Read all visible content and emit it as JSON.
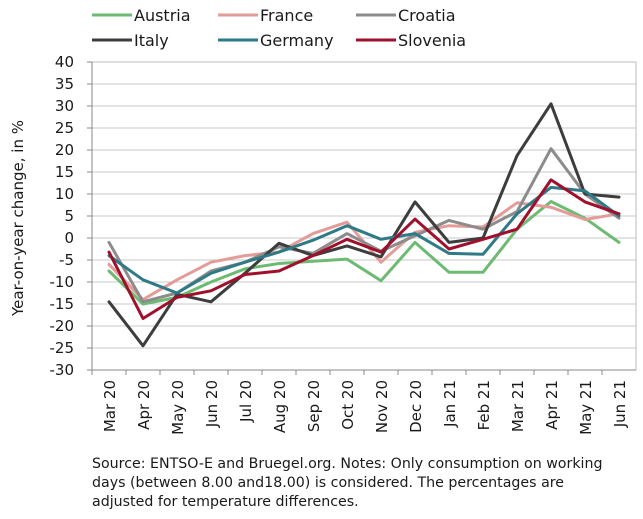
{
  "chart_data": {
    "type": "line",
    "ylabel": "Year-on-year change, in %",
    "xlabel": "",
    "ylim": [
      -30,
      40
    ],
    "yticks": [
      40,
      35,
      30,
      25,
      20,
      15,
      10,
      5,
      0,
      -5,
      -10,
      -15,
      -20,
      -25,
      -30
    ],
    "grid": true,
    "legend_position": "top",
    "categories": [
      "Mar 20",
      "Apr 20",
      "May 20",
      "Jun 20",
      "Jul 20",
      "Aug 20",
      "Sep 20",
      "Oct 20",
      "Nov 20",
      "Dec 20",
      "Jan 21",
      "Feb 21",
      "Mar 21",
      "Apr 21",
      "May 21",
      "Jun 21"
    ],
    "series": [
      {
        "name": "Austria",
        "color": "#6dbb72",
        "values": [
          -7.5,
          -15,
          -13.5,
          -10,
          -7,
          -5.8,
          -5.3,
          -4.8,
          -9.7,
          -1,
          -7.8,
          -7.8,
          2,
          8.3,
          4.5,
          -1
        ]
      },
      {
        "name": "France",
        "color": "#e39c97",
        "values": [
          -6,
          -14,
          -9.5,
          -5.5,
          -4,
          -3.2,
          1,
          3.6,
          -5.5,
          1.3,
          2.8,
          2.5,
          8,
          7,
          4.2,
          5.5
        ]
      },
      {
        "name": "Croatia",
        "color": "#8c8c8c",
        "values": [
          -1,
          -14.5,
          -12.5,
          -7.5,
          -5.5,
          -2,
          -3.5,
          1,
          -3,
          0.5,
          4,
          2,
          6,
          20.3,
          10,
          4.5
        ]
      },
      {
        "name": "Italy",
        "color": "#3d3d3d",
        "values": [
          -14.5,
          -24.5,
          -12.8,
          -14.5,
          -8,
          -1.2,
          -4,
          -1.8,
          -4.3,
          8.2,
          -1,
          0,
          18.7,
          30.5,
          10,
          9.3
        ]
      },
      {
        "name": "Germany",
        "color": "#2e7a86",
        "values": [
          -4,
          -9.5,
          -12.5,
          -8,
          -5.5,
          -3.2,
          -0.5,
          2.8,
          -0.3,
          1,
          -3.5,
          -3.7,
          5.5,
          11.5,
          10.7,
          5
        ]
      },
      {
        "name": "Slovenia",
        "color": "#a0102c",
        "values": [
          -3.2,
          -18.3,
          -13.5,
          -12,
          -8.3,
          -7.5,
          -4,
          -0.3,
          -3.2,
          4.3,
          -2.5,
          -0.3,
          2,
          13.2,
          8.2,
          5.5
        ]
      }
    ]
  },
  "source_note": "Source: ENTSO-E and Bruegel.org. Notes: Only consumption on working days (between 8.00 and18.00) is considered. The percentages are adjusted for temperature differences."
}
